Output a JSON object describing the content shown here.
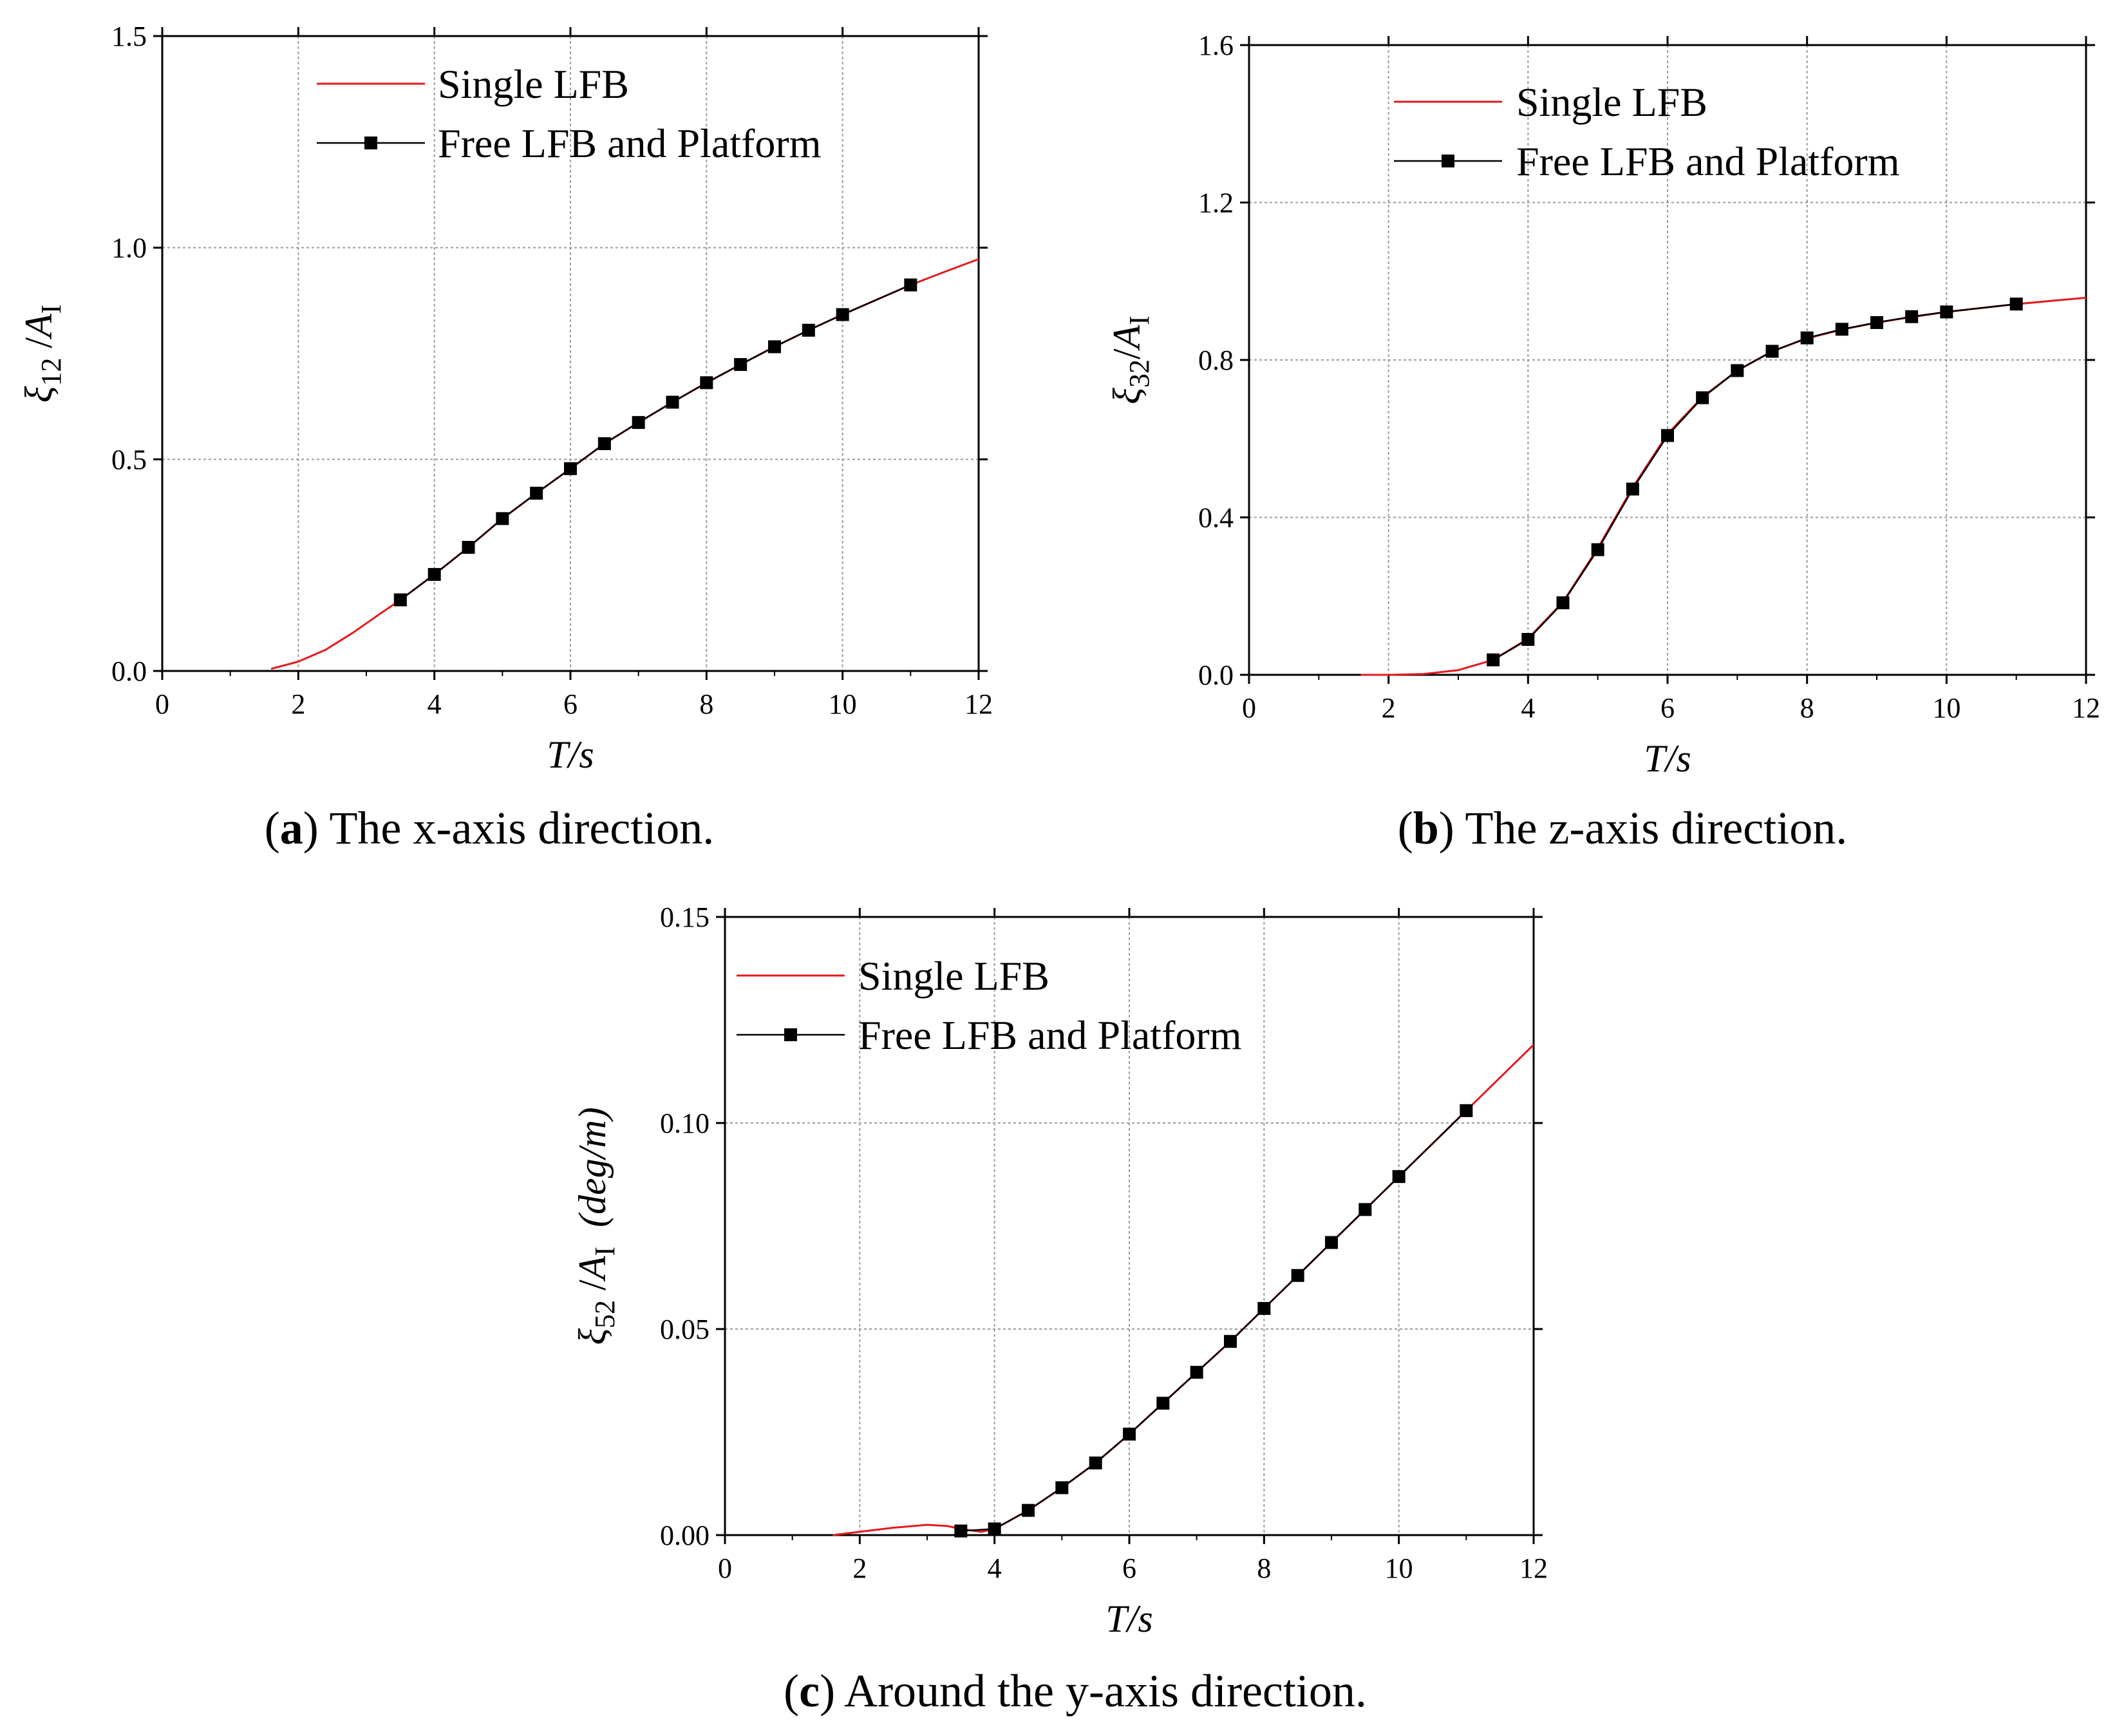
{
  "chart_data": [
    {
      "id": "a",
      "type": "line",
      "caption_label": "a",
      "caption_text": "The x-axis direction.",
      "xlabel": "T/s",
      "ylabel": {
        "symbol": "ξ",
        "subscript": "12",
        "separator": " /",
        "amp": "A",
        "amp_subscript": "I",
        "unit": ""
      },
      "xlim": [
        0,
        12
      ],
      "ylim": [
        0,
        1.5
      ],
      "xticks": [
        "0",
        "2",
        "4",
        "6",
        "8",
        "10",
        "12"
      ],
      "yticks": [
        "0.0",
        "0.5",
        "1.0",
        "1.5"
      ],
      "grid": true,
      "legend_position": "top-center",
      "series": [
        {
          "name": "Single LFB",
          "color": "#e41a1c",
          "marker": "none",
          "x": [
            1.6,
            2.0,
            2.4,
            2.8,
            3.2,
            3.5,
            4.0,
            4.5,
            5.0,
            5.5,
            6.0,
            6.5,
            7.0,
            7.5,
            8.0,
            8.5,
            9.0,
            9.5,
            10.0,
            10.5,
            11.0,
            11.5,
            12.0
          ],
          "y": [
            0.005,
            0.022,
            0.05,
            0.09,
            0.135,
            0.168,
            0.228,
            0.292,
            0.36,
            0.42,
            0.478,
            0.537,
            0.587,
            0.635,
            0.681,
            0.724,
            0.766,
            0.805,
            0.842,
            0.877,
            0.912,
            0.943,
            0.973
          ]
        },
        {
          "name": "Free LFB and Platform",
          "color": "#000000",
          "marker": "square",
          "x": [
            3.5,
            4.0,
            4.5,
            5.0,
            5.5,
            6.0,
            6.5,
            7.0,
            7.5,
            8.0,
            8.5,
            9.0,
            9.5,
            10.0,
            11.0
          ],
          "y": [
            0.168,
            0.228,
            0.292,
            0.36,
            0.42,
            0.478,
            0.537,
            0.587,
            0.635,
            0.681,
            0.724,
            0.766,
            0.805,
            0.842,
            0.912
          ]
        }
      ]
    },
    {
      "id": "b",
      "type": "line",
      "caption_label": "b",
      "caption_text": "The z-axis direction.",
      "xlabel": "T/s",
      "ylabel": {
        "symbol": "ξ",
        "subscript": "32",
        "separator": "/",
        "amp": "A",
        "amp_subscript": "I",
        "unit": ""
      },
      "xlim": [
        0,
        12
      ],
      "ylim": [
        0,
        1.6
      ],
      "xticks": [
        "0",
        "2",
        "4",
        "6",
        "8",
        "10",
        "12"
      ],
      "yticks": [
        "0.0",
        "0.4",
        "0.8",
        "1.2",
        "1.6"
      ],
      "grid": true,
      "legend_position": "top-center",
      "series": [
        {
          "name": "Single LFB",
          "color": "#e41a1c",
          "marker": "none",
          "x": [
            1.6,
            2.0,
            2.5,
            3.0,
            3.5,
            4.0,
            4.5,
            5.0,
            5.5,
            6.0,
            6.5,
            7.0,
            7.5,
            8.0,
            8.5,
            9.0,
            9.5,
            10.0,
            10.5,
            11.0,
            11.5,
            12.0
          ],
          "y": [
            0.0,
            0.0,
            0.002,
            0.012,
            0.038,
            0.092,
            0.185,
            0.322,
            0.476,
            0.612,
            0.706,
            0.773,
            0.822,
            0.855,
            0.877,
            0.895,
            0.909,
            0.922,
            0.932,
            0.942,
            0.95,
            0.958
          ]
        },
        {
          "name": "Free LFB and Platform",
          "color": "#000000",
          "marker": "square",
          "x": [
            3.5,
            4.0,
            4.5,
            5.0,
            5.5,
            6.0,
            6.5,
            7.0,
            7.5,
            8.0,
            8.5,
            9.0,
            9.5,
            10.0,
            11.0
          ],
          "y": [
            0.038,
            0.09,
            0.183,
            0.318,
            0.472,
            0.608,
            0.704,
            0.773,
            0.822,
            0.856,
            0.878,
            0.895,
            0.91,
            0.922,
            0.942
          ]
        }
      ]
    },
    {
      "id": "c",
      "type": "line",
      "caption_label": "c",
      "caption_text": "Around the y-axis direction.",
      "xlabel": "T/s",
      "ylabel": {
        "symbol": "ξ",
        "subscript": "52",
        "separator": " /",
        "amp": "A",
        "amp_subscript": "I",
        "unit": "(deg/m)"
      },
      "xlim": [
        0,
        12
      ],
      "ylim": [
        0,
        0.15
      ],
      "xticks": [
        "0",
        "2",
        "4",
        "6",
        "8",
        "10",
        "12"
      ],
      "yticks": [
        "0.00",
        "0.05",
        "0.10",
        "0.15"
      ],
      "grid": true,
      "legend_position": "top-left",
      "series": [
        {
          "name": "Single LFB",
          "color": "#e41a1c",
          "marker": "none",
          "x": [
            1.6,
            2.0,
            2.5,
            3.0,
            3.3,
            3.5,
            3.8,
            4.0,
            4.5,
            5.0,
            5.5,
            6.0,
            6.5,
            7.0,
            7.5,
            8.0,
            8.5,
            9.0,
            9.5,
            10.0,
            10.5,
            11.0,
            11.5,
            12.0
          ],
          "y": [
            0.0,
            0.0008,
            0.0018,
            0.0025,
            0.0022,
            0.0015,
            0.0008,
            0.0015,
            0.006,
            0.0115,
            0.0175,
            0.0245,
            0.032,
            0.0395,
            0.047,
            0.055,
            0.063,
            0.071,
            0.079,
            0.087,
            0.095,
            0.103,
            0.111,
            0.119
          ]
        },
        {
          "name": "Free LFB and Platform",
          "color": "#000000",
          "marker": "square",
          "x": [
            3.5,
            4.0,
            4.5,
            5.0,
            5.5,
            6.0,
            6.5,
            7.0,
            7.5,
            8.0,
            8.5,
            9.0,
            9.5,
            10.0,
            11.0
          ],
          "y": [
            0.001,
            0.0015,
            0.006,
            0.0115,
            0.0175,
            0.0245,
            0.032,
            0.0395,
            0.047,
            0.055,
            0.063,
            0.071,
            0.079,
            0.087,
            0.103
          ]
        }
      ]
    }
  ]
}
